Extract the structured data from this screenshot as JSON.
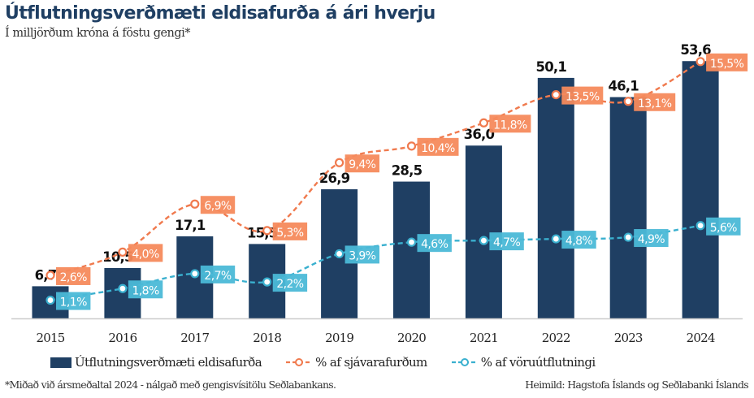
{
  "header": {
    "title": "Útflutningsverðmæti eldisafurða á ári hverju",
    "subtitle": "Í milljörðum króna á föstu gengi*"
  },
  "footer": {
    "footnote": "*Miðað við ársmeðaltal 2024 - nálgað með gengisvísitölu Seðlabankans.",
    "source": "Heimild: Hagstofa Íslands og Seðlabanki Íslands"
  },
  "legend": {
    "bar_label": "Útflutningsverðmæti eldisafurða",
    "orange_label": "% af sjávarafurðum",
    "blue_label": "% af vöruútflutningi"
  },
  "colors": {
    "bar": "#1f3f63",
    "orange": "#f07a4e",
    "orange_label_bg": "#f58a5c",
    "blue": "#3ab0cf",
    "blue_label_bg": "#4bb9d7",
    "axis": "#cccccc"
  },
  "chart_data": {
    "type": "bar",
    "title": "Útflutningsverðmæti eldisafurða á ári hverju",
    "subtitle": "Í milljörðum króna á föstu gengi*",
    "xlabel": "",
    "ylabel": "",
    "grid": false,
    "legend_position": "bottom",
    "categories": [
      "2015",
      "2016",
      "2017",
      "2018",
      "2019",
      "2020",
      "2021",
      "2022",
      "2023",
      "2024"
    ],
    "series": [
      {
        "name": "Útflutningsverðmæti eldisafurða",
        "type": "bar",
        "values": [
          6.7,
          10.5,
          17.1,
          15.5,
          26.9,
          28.5,
          36.0,
          50.1,
          46.1,
          53.6
        ],
        "labels": [
          "6,7",
          "10,5",
          "17,1",
          "15,5",
          "26,9",
          "28,5",
          "36,0",
          "50,1",
          "46,1",
          "53,6"
        ]
      },
      {
        "name": "% af sjávarafurðum",
        "type": "line",
        "values": [
          2.6,
          4.0,
          6.9,
          5.3,
          9.4,
          10.4,
          11.8,
          13.5,
          13.1,
          15.5
        ],
        "labels": [
          "2,6%",
          "4,0%",
          "6,9%",
          "5,3%",
          "9,4%",
          "10,4%",
          "11,8%",
          "13,5%",
          "13,1%",
          "15,5%"
        ]
      },
      {
        "name": "% af vöruútflutningi",
        "type": "line",
        "values": [
          1.1,
          1.8,
          2.7,
          2.2,
          3.9,
          4.6,
          4.7,
          4.8,
          4.9,
          5.6
        ],
        "labels": [
          "1,1%",
          "1,8%",
          "2,7%",
          "2,2%",
          "3,9%",
          "4,6%",
          "4,7%",
          "4,8%",
          "4,9%",
          "5,6%"
        ]
      }
    ]
  }
}
